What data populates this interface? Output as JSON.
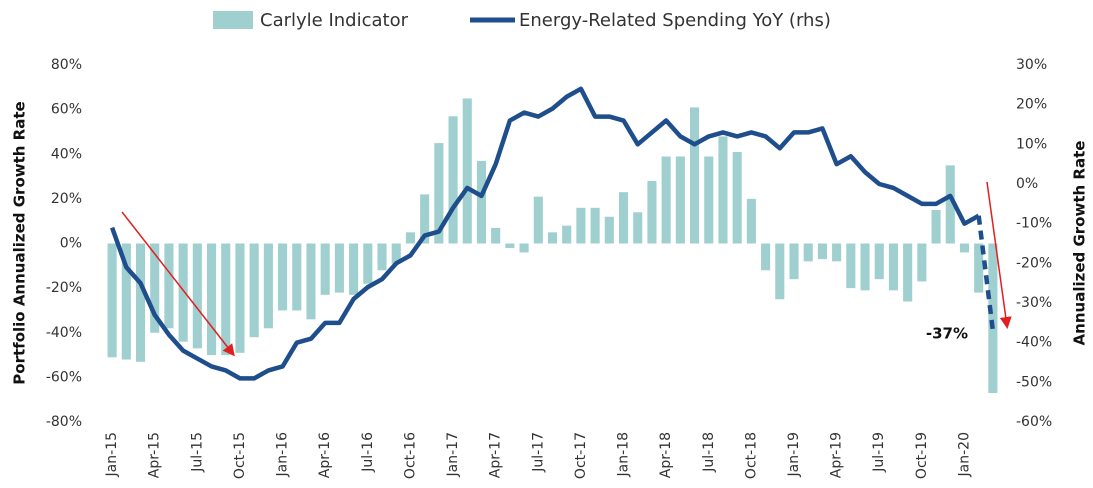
{
  "chart_data": {
    "type": "bar+line",
    "categories": [
      "Jan-15",
      null,
      null,
      "Apr-15",
      null,
      null,
      "Jul-15",
      null,
      null,
      "Oct-15",
      null,
      null,
      "Jan-16",
      null,
      null,
      "Apr-16",
      null,
      null,
      "Jul-16",
      null,
      null,
      "Oct-16",
      null,
      null,
      "Jan-17",
      null,
      null,
      "Apr-17",
      null,
      null,
      "Jul-17",
      null,
      null,
      "Oct-17",
      null,
      null,
      "Jan-18",
      null,
      null,
      "Apr-18",
      null,
      null,
      "Jul-18",
      null,
      null,
      "Oct-18",
      null,
      null,
      "Jan-19",
      null,
      null,
      "Apr-19",
      null,
      null,
      "Jul-19",
      null,
      null,
      "Oct-19",
      null,
      null,
      "Jan-20",
      null,
      null
    ],
    "series": [
      {
        "name": "Carlyle Indicator",
        "type": "bar",
        "color": "#9fcfcf",
        "values": [
          -51,
          -52,
          -53,
          -40,
          -38,
          -44,
          -47,
          -50,
          -50,
          -49,
          -42,
          -38,
          -30,
          -30,
          -34,
          -23,
          -22,
          -23,
          -18,
          -12,
          -9,
          5,
          22,
          45,
          57,
          65,
          37,
          7,
          -2,
          -4,
          21,
          5,
          8,
          16,
          16,
          12,
          23,
          14,
          28,
          39,
          39,
          61,
          39,
          48,
          41,
          20,
          -12,
          -25,
          -16,
          -8,
          -7,
          -8,
          -20,
          -21,
          -16,
          -21,
          -26,
          -17,
          15,
          35,
          -4,
          -22,
          -67
        ]
      },
      {
        "name": "Energy-Related Spending YoY (rhs)",
        "type": "line",
        "axis": "y2",
        "color": "#1f4e8c",
        "values": [
          -11,
          -21,
          -25,
          -33,
          -38,
          -42,
          -44,
          -46,
          -47,
          -49,
          -49,
          -47,
          -46,
          -40,
          -39,
          -35,
          -35,
          -29,
          -26,
          -24,
          -20,
          -18,
          -13,
          -12,
          -6,
          -1,
          -3,
          5,
          16,
          18,
          17,
          19,
          22,
          24,
          17,
          17,
          16,
          10,
          13,
          16,
          12,
          10,
          12,
          13,
          12,
          13,
          12,
          9,
          13,
          13,
          14,
          5,
          7,
          3,
          0,
          -1,
          -3,
          -5,
          -5,
          -3,
          -10,
          -8,
          -37
        ]
      }
    ],
    "ylabel": "Portfolio Annualized Growth Rate",
    "y2label": "Annualized Growth Rate",
    "ylim": [
      -80,
      80
    ],
    "yticks": [
      {
        "value": -80,
        "label": "-80%"
      },
      {
        "value": -60,
        "label": "-60%"
      },
      {
        "value": -40,
        "label": "-40%"
      },
      {
        "value": -20,
        "label": "-20%"
      },
      {
        "value": 0,
        "label": "0%"
      },
      {
        "value": 20,
        "label": "20%"
      },
      {
        "value": 40,
        "label": "40%"
      },
      {
        "value": 60,
        "label": "60%"
      },
      {
        "value": 80,
        "label": "80%"
      }
    ],
    "y2lim": [
      -60,
      30
    ],
    "y2ticks": [
      {
        "value": -60,
        "label": "-60%"
      },
      {
        "value": -50,
        "label": "-50%"
      },
      {
        "value": -40,
        "label": "-40%"
      },
      {
        "value": -30,
        "label": "-30%"
      },
      {
        "value": -20,
        "label": "-20%"
      },
      {
        "value": -10,
        "label": "-10%"
      },
      {
        "value": 0,
        "label": "0%"
      },
      {
        "value": 10,
        "label": "10%"
      },
      {
        "value": 20,
        "label": "20%"
      },
      {
        "value": 30,
        "label": "30%"
      }
    ],
    "annotation": "-37%",
    "grid": false
  }
}
